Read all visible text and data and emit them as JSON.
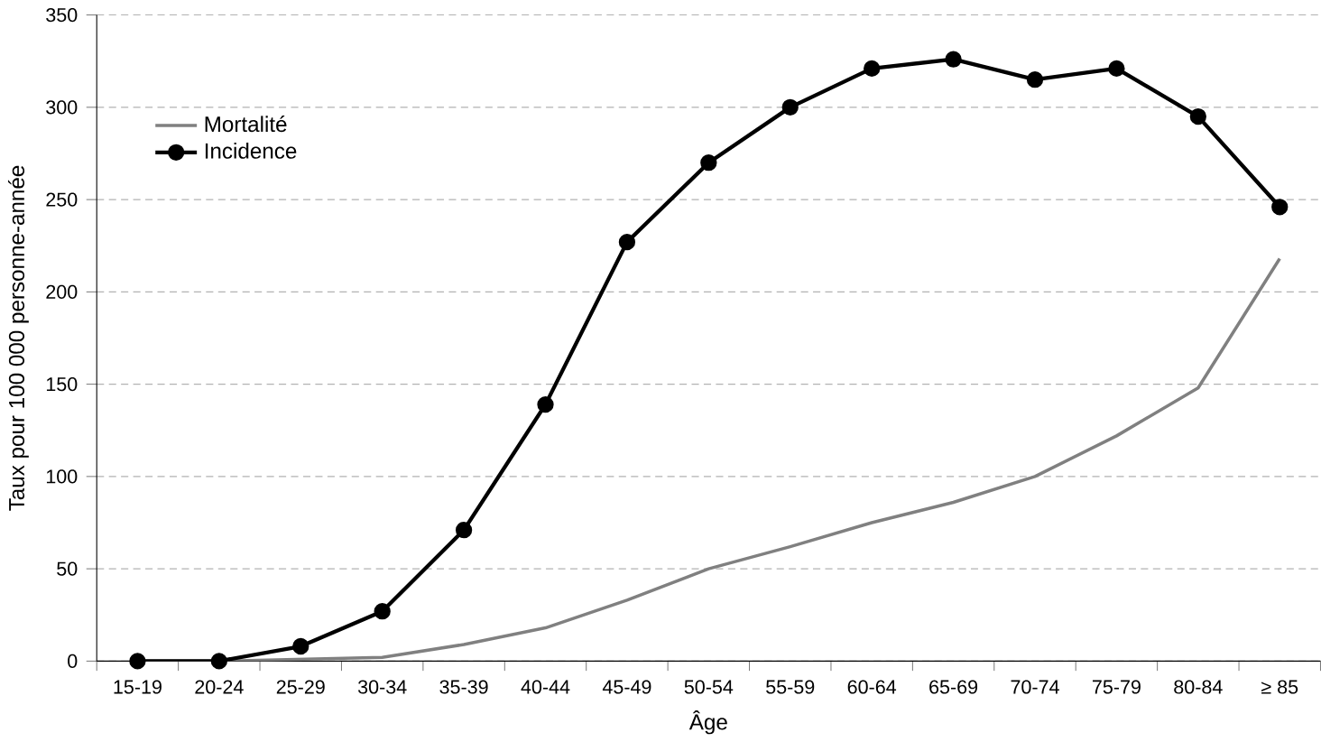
{
  "chart_data": {
    "type": "line",
    "xlabel": "Âge",
    "ylabel": "Taux pour 100 000 personne-année",
    "categories": [
      "15-19",
      "20-24",
      "25-29",
      "30-34",
      "35-39",
      "40-44",
      "45-49",
      "50-54",
      "55-59",
      "60-64",
      "65-69",
      "70-74",
      "75-79",
      "80-84",
      "≥ 85"
    ],
    "series": [
      {
        "name": "Mortalité",
        "color": "#808080",
        "marker": "none",
        "values": [
          0,
          0,
          1,
          2,
          9,
          18,
          33,
          50,
          62,
          75,
          86,
          100,
          122,
          148,
          218
        ]
      },
      {
        "name": "Incidence",
        "color": "#000000",
        "marker": "circle",
        "values": [
          0,
          0,
          8,
          27,
          71,
          139,
          227,
          270,
          300,
          321,
          326,
          315,
          321,
          295,
          246
        ]
      }
    ],
    "ylim": [
      0,
      350
    ],
    "yticks": [
      0,
      50,
      100,
      150,
      200,
      250,
      300,
      350
    ],
    "grid": "y",
    "legend": "top left"
  }
}
